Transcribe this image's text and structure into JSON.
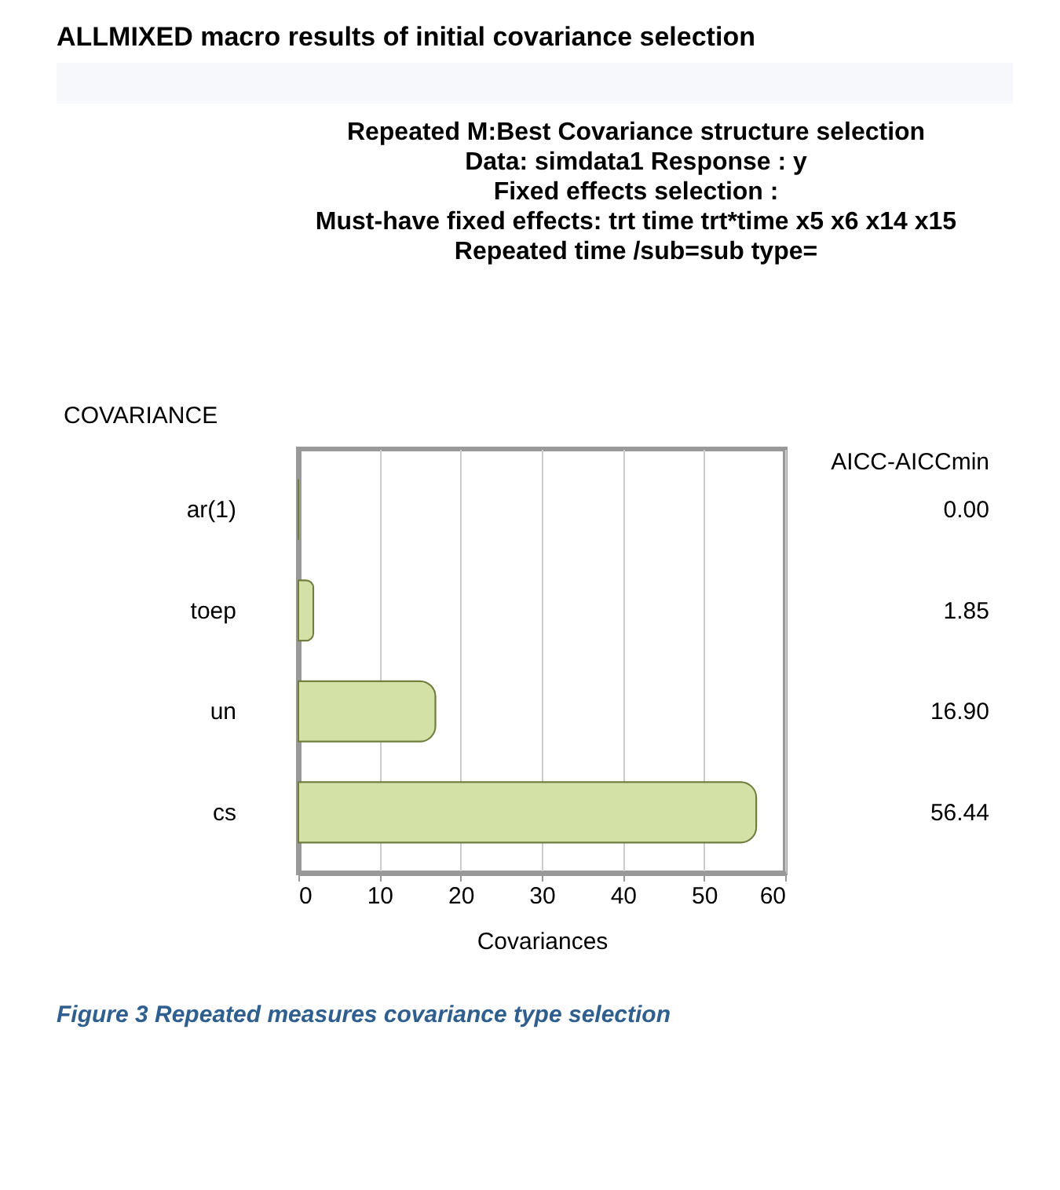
{
  "chart_data": {
    "type": "bar",
    "orientation": "horizontal",
    "title": "ALLMIXED macro results of initial covariance selection",
    "subtitle": "Repeated M:Best Covariance structure selection\nData: simdata1 Response : y\nFixed effects selection :\nMust-have fixed effects: trt time trt*time  x5 x6 x14 x15\n\nRepeated time /sub=sub type=",
    "categories": [
      "ar(1)",
      "toep",
      "un",
      "cs"
    ],
    "values": [
      0.0,
      1.85,
      16.9,
      56.44
    ],
    "value_labels": [
      "0.00",
      "1.85",
      "16.90",
      "56.44"
    ],
    "color": "#d3e1a6",
    "xlim": [
      0,
      60
    ],
    "xticks": [
      0,
      10,
      20,
      30,
      40,
      50,
      60
    ],
    "xlabel": "Covariances",
    "ylabel": "COVARIANCE",
    "y2label": "AICC-AICCmin",
    "grid": "x",
    "annotations": [
      "Figure 3 Repeated measures covariance type selection"
    ]
  }
}
